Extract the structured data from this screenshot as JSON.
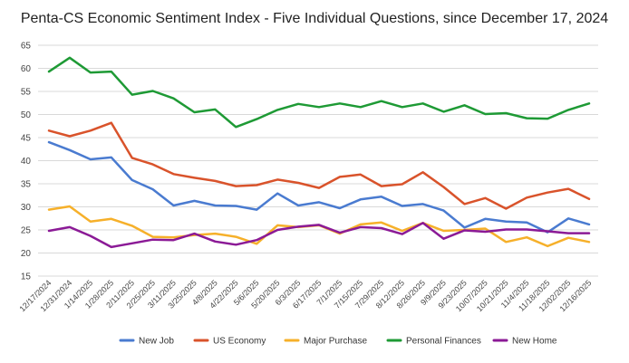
{
  "chart_data": {
    "type": "line",
    "title": "Penta-CS Economic Sentiment Index - Five Individual Questions, since December 17, 2024",
    "xlabel": "",
    "ylabel": "",
    "ylim": [
      15,
      65
    ],
    "yticks": [
      15,
      20,
      25,
      30,
      35,
      40,
      45,
      50,
      55,
      60,
      65
    ],
    "grid": true,
    "legend_position": "bottom",
    "categories": [
      "12/17/2024",
      "12/31/2024",
      "1/14/2025",
      "1/28/2025",
      "2/11/2025",
      "2/25/2025",
      "3/11/2025",
      "3/25/2025",
      "4/8/2025",
      "4/22/2025",
      "5/6/2025",
      "5/20/2025",
      "6/3/2025",
      "6/17/2025",
      "7/1/2025",
      "7/15/2025",
      "7/29/2025",
      "8/12/2025",
      "8/26/2025",
      "9/9/2025",
      "9/23/2025",
      "10/07/2025",
      "10/21/2025",
      "11/4/2025",
      "11/18/2025",
      "12/02/2025",
      "12/16/2025"
    ],
    "series": [
      {
        "name": "New Job",
        "color": "#4a7bd0",
        "values": [
          44,
          42.3,
          40.3,
          40.7,
          35.8,
          33.8,
          30.3,
          31.3,
          30.3,
          30.2,
          29.4,
          32.9,
          30.3,
          31.0,
          29.7,
          31.6,
          32.2,
          30.2,
          30.6,
          29.2,
          25.5,
          27.4,
          26.8,
          26.6,
          24.5,
          27.5,
          26.2
        ]
      },
      {
        "name": "US Economy",
        "color": "#d9532b",
        "values": [
          46.5,
          45.3,
          46.5,
          48.2,
          40.6,
          39.2,
          37.1,
          36.3,
          35.6,
          34.5,
          34.7,
          35.9,
          35.2,
          34.1,
          36.5,
          37.0,
          34.5,
          34.9,
          37.5,
          34.3,
          30.6,
          31.9,
          29.6,
          32.0,
          33.1,
          33.9,
          31.7
        ]
      },
      {
        "name": "Major Purchase",
        "color": "#f6b02a",
        "values": [
          29.4,
          30.1,
          26.8,
          27.4,
          25.9,
          23.5,
          23.4,
          23.9,
          24.2,
          23.5,
          22.0,
          26.0,
          25.6,
          26.0,
          24.2,
          26.2,
          26.6,
          24.8,
          26.5,
          24.8,
          25.0,
          25.3,
          22.4,
          23.4,
          21.5,
          23.3,
          22.4
        ]
      },
      {
        "name": "Personal Finances",
        "color": "#1e9a35",
        "values": [
          59.3,
          62.3,
          59.1,
          59.3,
          54.3,
          55.1,
          53.5,
          50.5,
          51.1,
          47.3,
          49.0,
          51.0,
          52.3,
          51.6,
          52.4,
          51.6,
          52.9,
          51.6,
          52.4,
          50.6,
          52.0,
          50.1,
          50.3,
          49.2,
          49.1,
          51.0,
          52.4
        ]
      },
      {
        "name": "New Home",
        "color": "#8b1a96",
        "values": [
          24.8,
          25.6,
          23.7,
          21.3,
          22.1,
          22.9,
          22.8,
          24.2,
          22.5,
          21.8,
          22.8,
          25.0,
          25.7,
          26.1,
          24.4,
          25.6,
          25.4,
          24.1,
          26.5,
          23.1,
          24.9,
          24.6,
          25.1,
          25.1,
          24.7,
          24.3,
          24.3
        ]
      }
    ]
  }
}
